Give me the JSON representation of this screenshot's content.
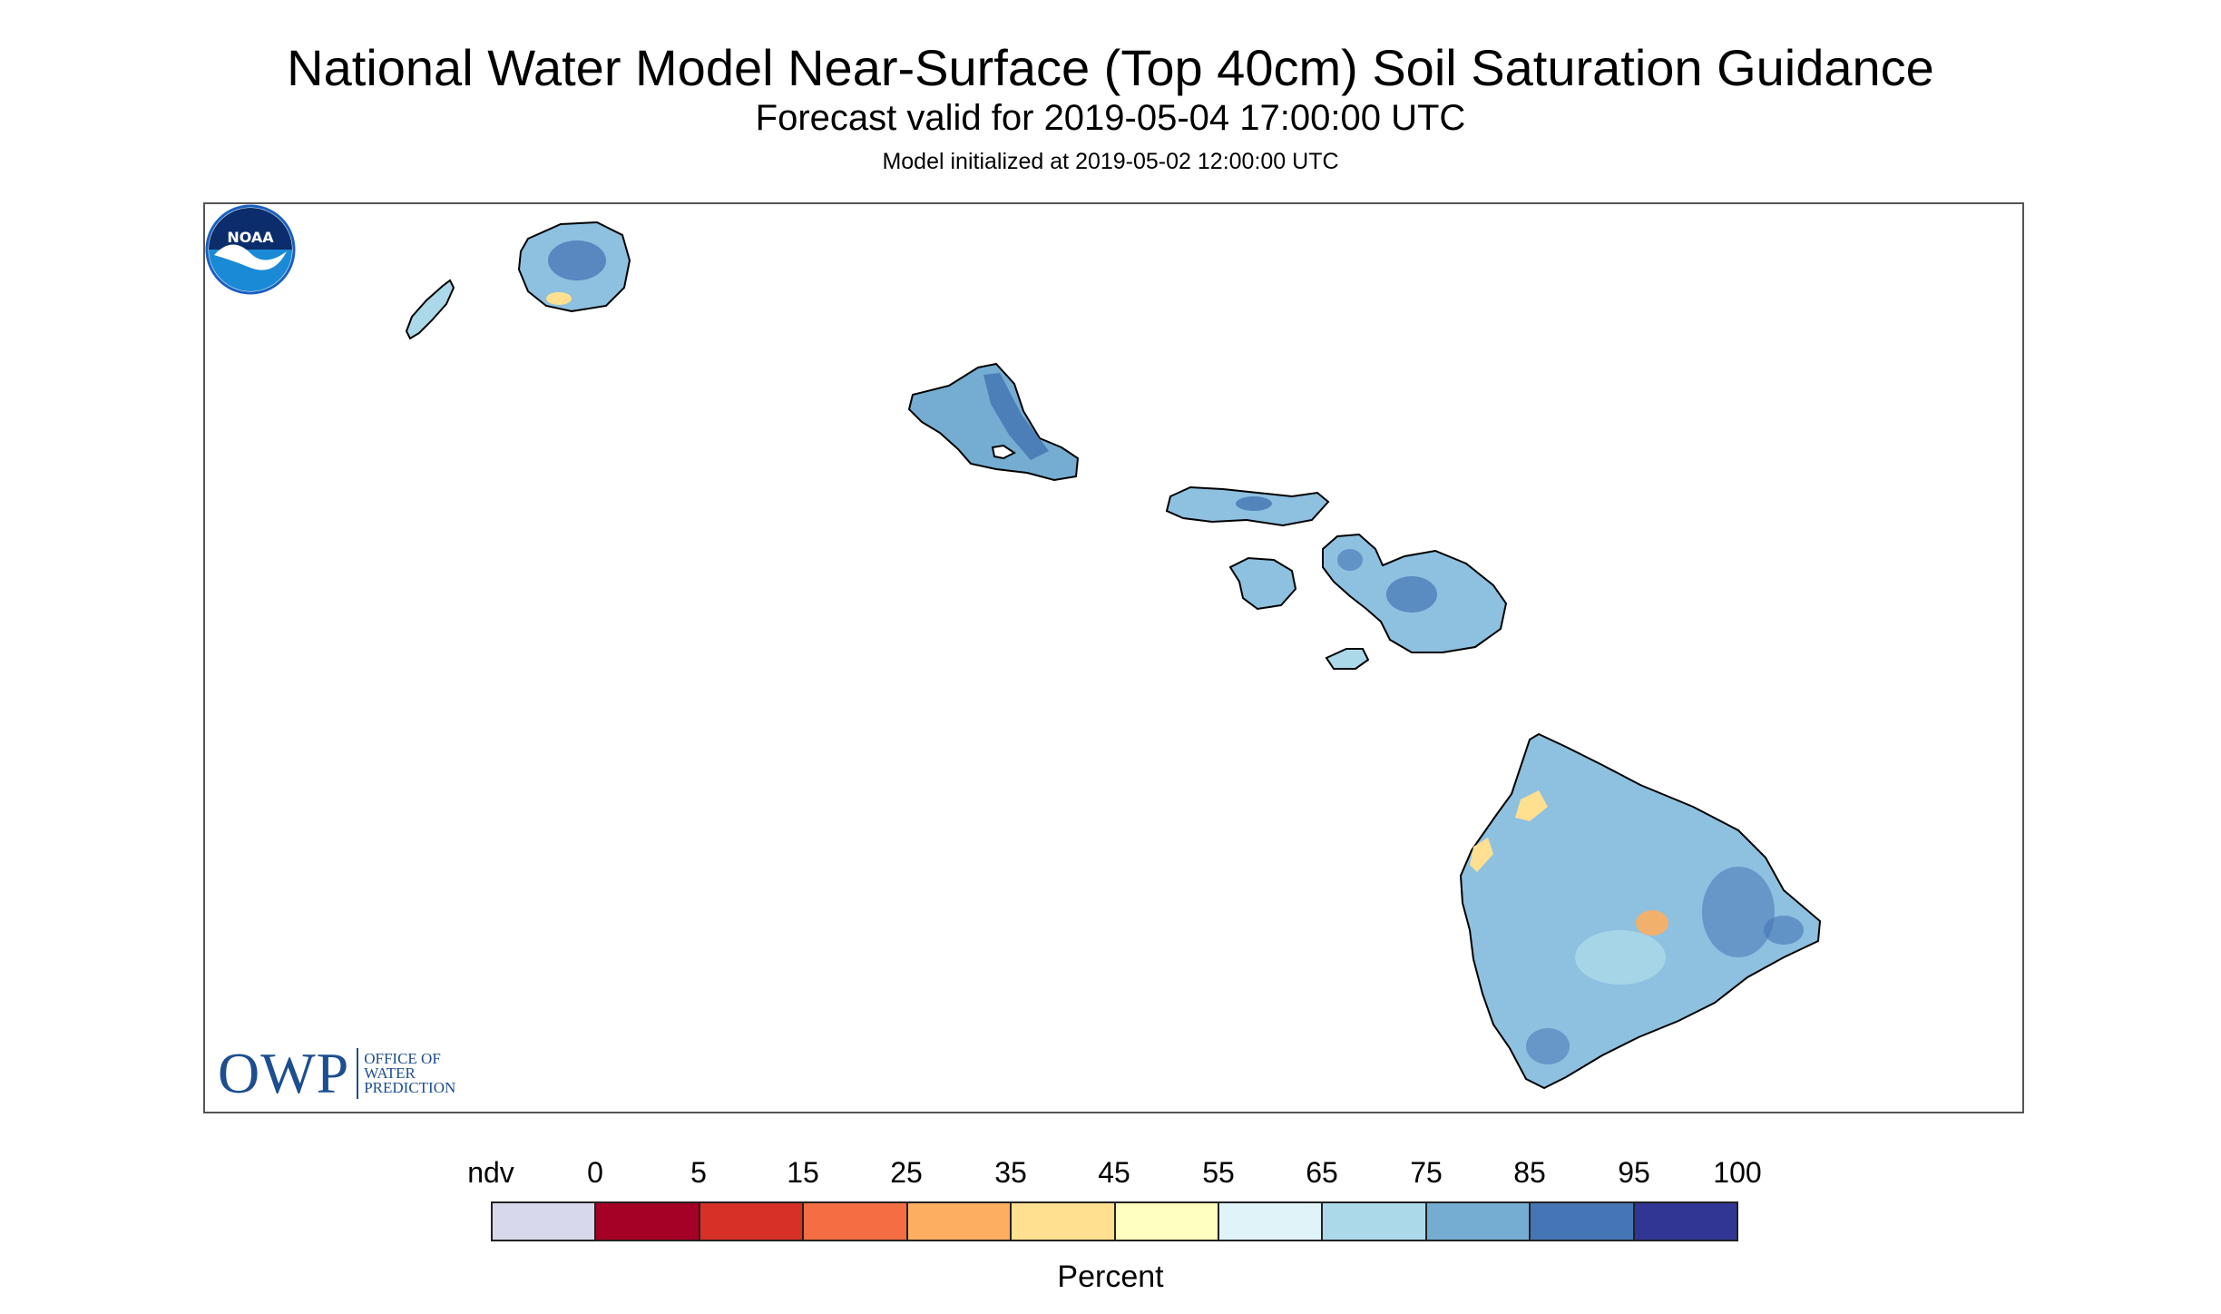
{
  "title": "National Water Model Near-Surface (Top 40cm) Soil Saturation Guidance",
  "subtitle": "Forecast valid for 2019-05-04 17:00:00 UTC",
  "init": "Model initialized at 2019-05-02 12:00:00 UTC",
  "owp_logo": {
    "letters": "OWP",
    "line1": "OFFICE OF",
    "line2": "WATER",
    "line3": "PREDICTION"
  },
  "noaa_logo": {
    "text": "NOAA"
  },
  "legend": {
    "tick_labels": [
      "ndv",
      "0",
      "5",
      "15",
      "25",
      "35",
      "45",
      "55",
      "65",
      "75",
      "85",
      "95",
      "100"
    ],
    "colors": [
      "#d8d8ec",
      "#a50026",
      "#d73027",
      "#f46d43",
      "#fdae61",
      "#fee090",
      "#ffffbf",
      "#e0f3f8",
      "#abd9e9",
      "#74add1",
      "#4575b4",
      "#313695"
    ],
    "units": "Percent"
  },
  "colors": {
    "island_base": "#8ec0e0",
    "island_wet": "#4575b4",
    "island_dry": "#fee090",
    "island_mid": "#abd9e9",
    "coast": "#000000",
    "owp_blue": "#1d4e8f",
    "noaa_blue": "#1b5fbf"
  }
}
